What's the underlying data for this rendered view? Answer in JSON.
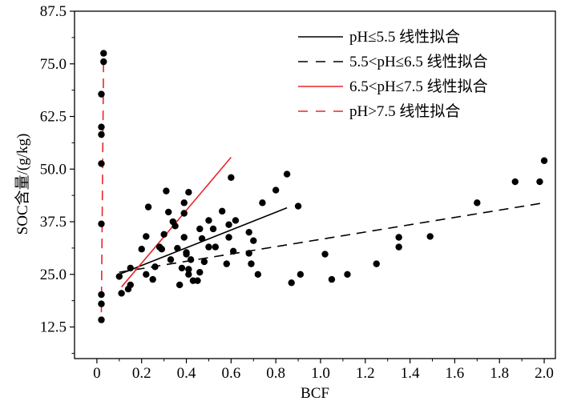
{
  "chart_data": {
    "type": "scatter",
    "xlabel": "BCF",
    "ylabel": "SOC含量/(g/kg)",
    "xlim": [
      -0.1,
      2.05
    ],
    "ylim": [
      5,
      87.5
    ],
    "xticks": [
      "0",
      "0.2",
      "0.4",
      "0.6",
      "0.8",
      "1.0",
      "1.2",
      "1.4",
      "1.6",
      "1.8",
      "2.0"
    ],
    "yticks": [
      "12.5",
      "25.0",
      "37.5",
      "50.0",
      "62.5",
      "75.0",
      "87.5"
    ],
    "legend_position": "top-right",
    "points": [
      [
        0.02,
        14.2
      ],
      [
        0.02,
        18.0
      ],
      [
        0.02,
        20.2
      ],
      [
        0.02,
        37.0
      ],
      [
        0.02,
        51.3
      ],
      [
        0.02,
        58.2
      ],
      [
        0.02,
        60.0
      ],
      [
        0.02,
        67.8
      ],
      [
        0.03,
        75.5
      ],
      [
        0.03,
        77.5
      ],
      [
        0.1,
        24.5
      ],
      [
        0.11,
        20.5
      ],
      [
        0.14,
        21.5
      ],
      [
        0.15,
        22.5
      ],
      [
        0.15,
        26.5
      ],
      [
        0.2,
        31.0
      ],
      [
        0.22,
        25.0
      ],
      [
        0.22,
        34.0
      ],
      [
        0.23,
        41.0
      ],
      [
        0.25,
        23.8
      ],
      [
        0.26,
        26.8
      ],
      [
        0.28,
        31.5
      ],
      [
        0.29,
        31.0
      ],
      [
        0.3,
        34.5
      ],
      [
        0.31,
        44.8
      ],
      [
        0.32,
        39.8
      ],
      [
        0.33,
        28.5
      ],
      [
        0.34,
        37.5
      ],
      [
        0.35,
        36.5
      ],
      [
        0.36,
        31.2
      ],
      [
        0.37,
        22.5
      ],
      [
        0.38,
        26.5
      ],
      [
        0.39,
        39.5
      ],
      [
        0.39,
        33.8
      ],
      [
        0.39,
        42.0
      ],
      [
        0.4,
        29.8
      ],
      [
        0.4,
        30.2
      ],
      [
        0.41,
        44.5
      ],
      [
        0.41,
        26.2
      ],
      [
        0.41,
        25.0
      ],
      [
        0.42,
        28.5
      ],
      [
        0.43,
        23.5
      ],
      [
        0.45,
        23.5
      ],
      [
        0.46,
        25.5
      ],
      [
        0.46,
        35.8
      ],
      [
        0.47,
        33.5
      ],
      [
        0.48,
        28.0
      ],
      [
        0.5,
        37.8
      ],
      [
        0.5,
        31.5
      ],
      [
        0.52,
        35.8
      ],
      [
        0.53,
        31.5
      ],
      [
        0.56,
        40.0
      ],
      [
        0.58,
        27.5
      ],
      [
        0.59,
        36.8
      ],
      [
        0.59,
        33.8
      ],
      [
        0.6,
        48.0
      ],
      [
        0.61,
        30.5
      ],
      [
        0.62,
        37.8
      ],
      [
        0.68,
        35.0
      ],
      [
        0.68,
        30.0
      ],
      [
        0.69,
        27.5
      ],
      [
        0.7,
        33.0
      ],
      [
        0.72,
        25.0
      ],
      [
        0.74,
        42.0
      ],
      [
        0.8,
        45.0
      ],
      [
        0.85,
        48.8
      ],
      [
        0.87,
        23.0
      ],
      [
        0.9,
        41.2
      ],
      [
        0.91,
        25.0
      ],
      [
        1.02,
        29.8
      ],
      [
        1.05,
        23.8
      ],
      [
        1.12,
        25.0
      ],
      [
        1.25,
        27.5
      ],
      [
        1.35,
        33.8
      ],
      [
        1.35,
        31.5
      ],
      [
        1.49,
        34.0
      ],
      [
        1.7,
        42.0
      ],
      [
        1.87,
        47.0
      ],
      [
        1.98,
        47.0
      ],
      [
        2.0,
        52.0
      ]
    ],
    "series": [
      {
        "name": "pH≤5.5 线性拟合",
        "style": "solid",
        "color": "#000000",
        "x": [
          0.1,
          0.85
        ],
        "y": [
          25.0,
          40.8
        ]
      },
      {
        "name": "5.5<pH≤6.5 线性拟合",
        "style": "dashed",
        "color": "#000000",
        "x": [
          0.1,
          2.0
        ],
        "y": [
          25.5,
          42.0
        ]
      },
      {
        "name": "6.5<pH≤7.5 线性拟合",
        "style": "solid",
        "color": "#e8262b",
        "x": [
          0.11,
          0.6
        ],
        "y": [
          22.0,
          52.8
        ]
      },
      {
        "name": "pH>7.5 线性拟合",
        "style": "dashed",
        "color": "#e8262b",
        "x": [
          0.02,
          0.03
        ],
        "y": [
          16.0,
          77.5
        ]
      }
    ]
  }
}
